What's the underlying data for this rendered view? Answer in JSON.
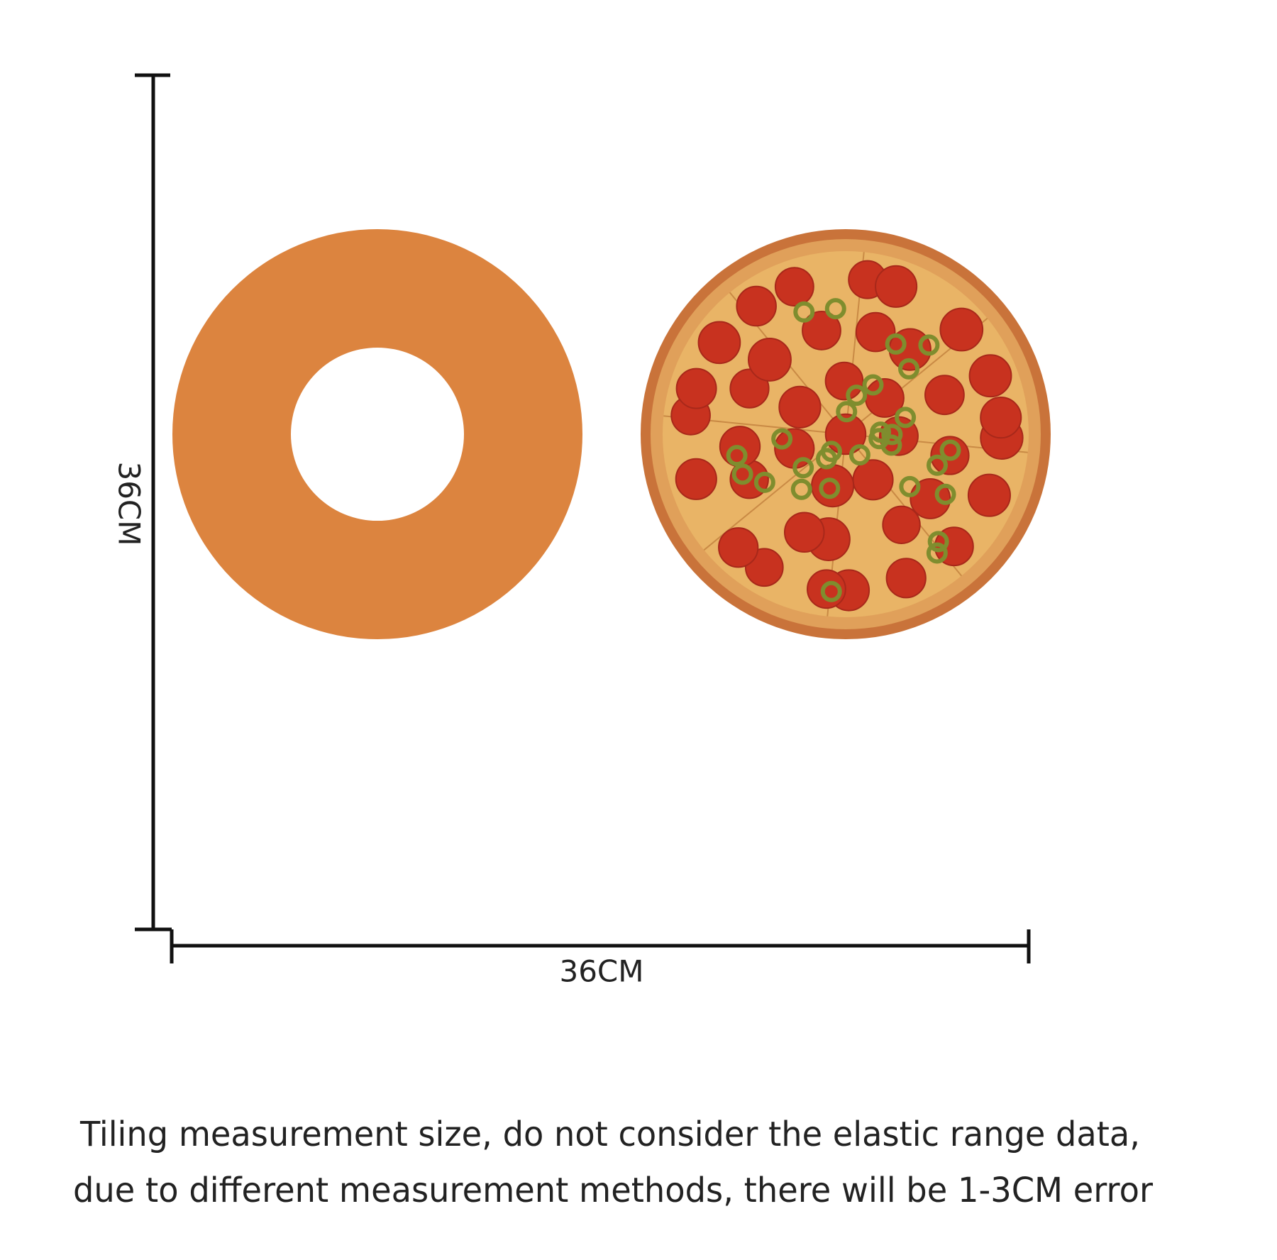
{
  "dimensions": {
    "height": "36CM",
    "width": "36CM"
  },
  "note": {
    "lines": [
      "Tiling measurement size, do not consider the elastic range data,",
      "due to different measurement methods, there will be 1-3CM error"
    ]
  }
}
